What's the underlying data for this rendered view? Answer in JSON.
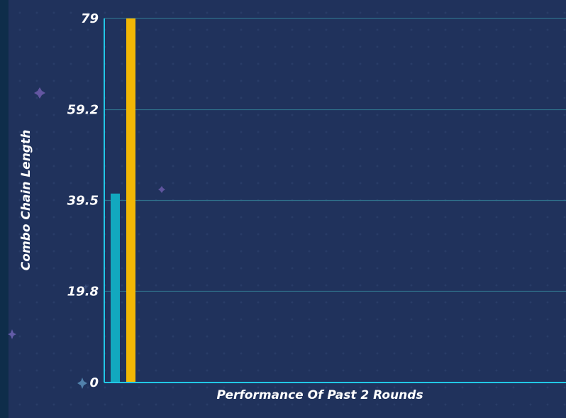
{
  "chart_data": {
    "type": "bar",
    "title": "",
    "xlabel": "Performance Of Past 2 Rounds",
    "ylabel": "Combo Chain Length",
    "ylim": [
      0,
      79
    ],
    "yticks": [
      "0",
      "19.8",
      "39.5",
      "59.2",
      "79"
    ],
    "ytick_values": [
      0,
      19.8,
      39.5,
      59.2,
      79
    ],
    "grid": true,
    "legend": "none",
    "series": [
      {
        "values": [
          41
        ],
        "color": "#12a8bf"
      },
      {
        "values": [
          79
        ],
        "color": "#f2b705"
      }
    ],
    "colors": {
      "panel_background": "#20325c",
      "axis_line": "#22c8e6",
      "grid_line": "#2f6f8a",
      "text": "#ffffff"
    }
  }
}
